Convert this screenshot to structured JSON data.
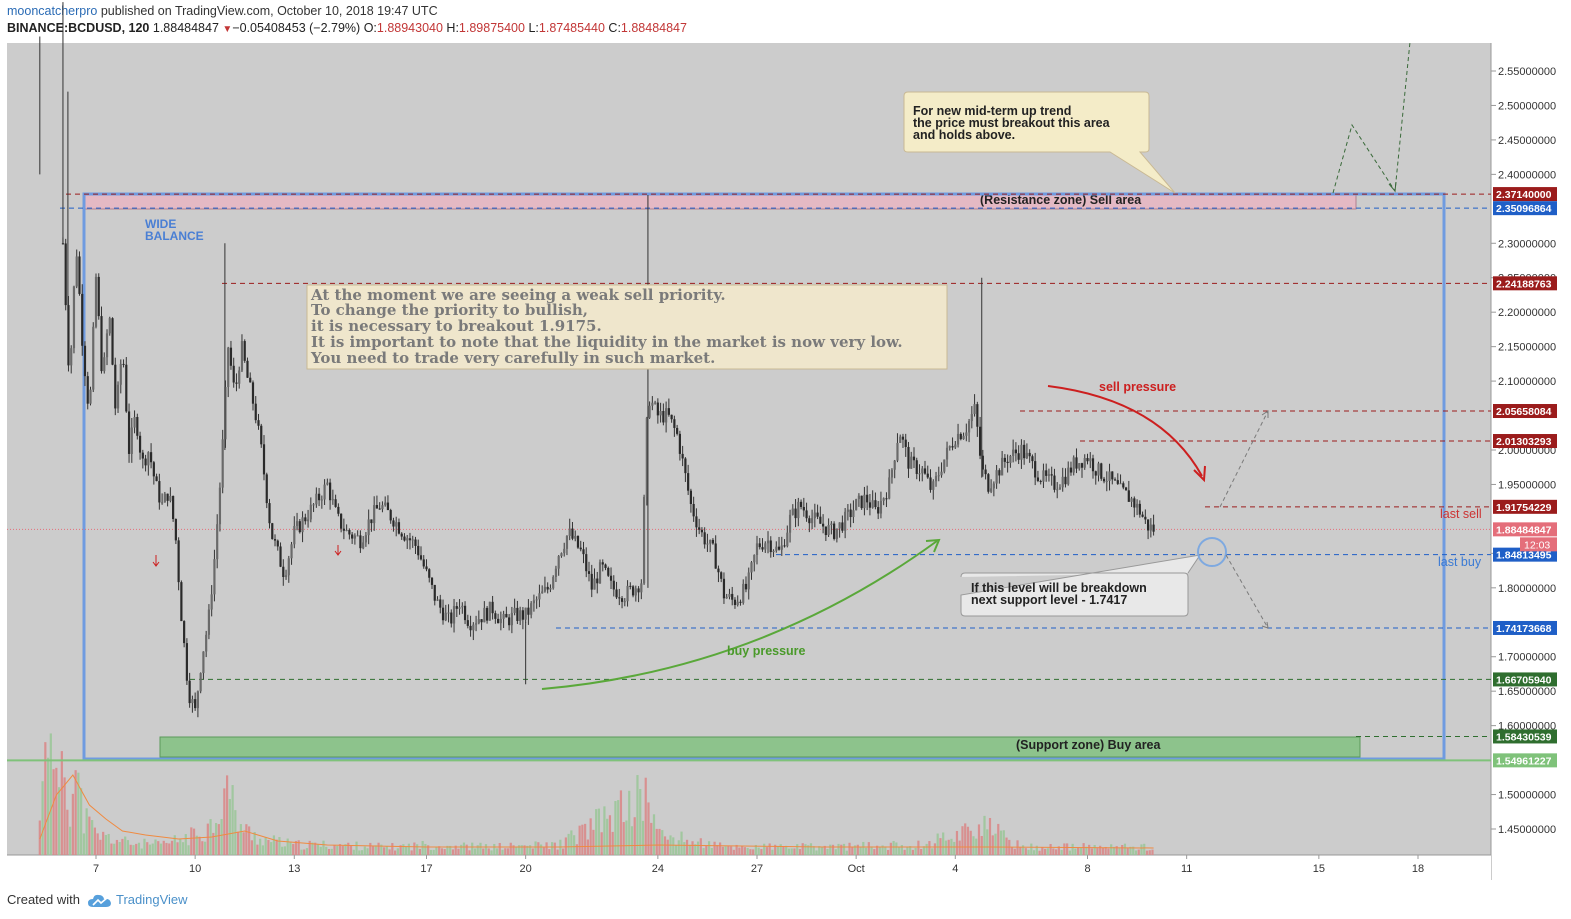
{
  "header": {
    "author": "mooncatcherpro",
    "published": "published on TradingView.com, October 10, 2018 19:47 UTC",
    "symbol": "BINANCE:BCDUSD, 120",
    "last": "1.88484847",
    "change": "−0.05408453 (−2.79%)",
    "o_label": "O:",
    "o": "1.88943040",
    "h_label": "H:",
    "h": "1.89875400",
    "l_label": "L:",
    "l": "1.87485440",
    "c_label": "C:",
    "c": "1.88484847"
  },
  "footer": {
    "created_with": "Created with",
    "brand": "TradingView"
  },
  "colors": {
    "background": "#cccccc",
    "candle_up": "#4a4a4a",
    "candle_down": "#3a3a3a",
    "resistance_zone": "#e4b9c4",
    "support_zone": "#8dc38c",
    "balance_box": "#6f9be0",
    "red_level": "#9b1c1c",
    "blue_level": "#1f5fc7",
    "green_level": "#2f6e2f"
  },
  "chart_data": {
    "type": "candlestick",
    "y_axis": {
      "ticks": [
        "2.55000000",
        "2.50000000",
        "2.45000000",
        "2.40000000",
        "2.30000000",
        "2.25000000",
        "2.20000000",
        "2.15000000",
        "2.10000000",
        "2.00000000",
        "1.95000000",
        "1.85000000",
        "1.80000000",
        "1.70000000",
        "1.65000000",
        "1.60000000",
        "1.50000000",
        "1.45000000"
      ],
      "tick_values": [
        2.55,
        2.5,
        2.45,
        2.4,
        2.3,
        2.25,
        2.2,
        2.15,
        2.1,
        2.0,
        1.95,
        1.85,
        1.8,
        1.7,
        1.65,
        1.6,
        1.5,
        1.45
      ],
      "range": [
        1.4,
        2.6
      ]
    },
    "x_axis": {
      "labels": [
        "7",
        "10",
        "13",
        "17",
        "20",
        "24",
        "27",
        "Oct",
        "4",
        "8",
        "11",
        "15",
        "18"
      ],
      "day_index": [
        3,
        6,
        9,
        13,
        16,
        20,
        23,
        26,
        29,
        33,
        36,
        40,
        43
      ]
    },
    "price_levels": [
      {
        "label": "2.37140000",
        "value": 2.3714,
        "color": "red"
      },
      {
        "label": "2.35096864",
        "value": 2.35096864,
        "color": "blue"
      },
      {
        "label": "2.24188763",
        "value": 2.24188763,
        "color": "red"
      },
      {
        "label": "2.05658084",
        "value": 2.05658084,
        "color": "red"
      },
      {
        "label": "2.01303293",
        "value": 2.01303293,
        "color": "red"
      },
      {
        "label": "1.91754229",
        "value": 1.91754229,
        "color": "red"
      },
      {
        "label": "1.88484847",
        "value": 1.88484847,
        "color": "pink"
      },
      {
        "label": "1.84813495",
        "value": 1.84813495,
        "color": "blue"
      },
      {
        "label": "1.74173668",
        "value": 1.74173668,
        "color": "blue"
      },
      {
        "label": "1.66705940",
        "value": 1.6670594,
        "color": "green"
      },
      {
        "label": "1.58430539",
        "value": 1.58430539,
        "color": "green"
      },
      {
        "label": "1.54961227",
        "value": 1.54961227,
        "color": "lightgreen"
      }
    ],
    "countdown": "12:03",
    "close_points": [
      [
        2.0,
        2.3
      ],
      [
        2.2,
        2.1
      ],
      [
        2.4,
        2.3
      ],
      [
        2.6,
        2.15
      ],
      [
        2.8,
        2.05
      ],
      [
        3.0,
        2.25
      ],
      [
        3.2,
        2.1
      ],
      [
        3.4,
        2.2
      ],
      [
        3.6,
        2.05
      ],
      [
        3.8,
        2.15
      ],
      [
        4.0,
        2.0
      ],
      [
        4.2,
        2.05
      ],
      [
        4.4,
        1.98
      ],
      [
        4.6,
        2.0
      ],
      [
        4.8,
        1.95
      ],
      [
        5.0,
        1.92
      ],
      [
        5.2,
        1.94
      ],
      [
        5.4,
        1.88
      ],
      [
        5.6,
        1.75
      ],
      [
        5.8,
        1.65
      ],
      [
        6.0,
        1.62
      ],
      [
        6.2,
        1.7
      ],
      [
        6.4,
        1.75
      ],
      [
        6.6,
        1.85
      ],
      [
        6.8,
        1.98
      ],
      [
        7.0,
        2.15
      ],
      [
        7.2,
        2.08
      ],
      [
        7.4,
        2.15
      ],
      [
        7.6,
        2.1
      ],
      [
        7.8,
        2.06
      ],
      [
        8.0,
        2.0
      ],
      [
        8.3,
        1.88
      ],
      [
        8.7,
        1.82
      ],
      [
        9.0,
        1.88
      ],
      [
        9.3,
        1.9
      ],
      [
        9.6,
        1.92
      ],
      [
        10.0,
        1.95
      ],
      [
        10.3,
        1.9
      ],
      [
        10.6,
        1.88
      ],
      [
        11.0,
        1.87
      ],
      [
        11.3,
        1.9
      ],
      [
        11.6,
        1.92
      ],
      [
        12.0,
        1.9
      ],
      [
        12.3,
        1.88
      ],
      [
        12.7,
        1.86
      ],
      [
        13.0,
        1.82
      ],
      [
        13.3,
        1.78
      ],
      [
        13.7,
        1.75
      ],
      [
        14.0,
        1.78
      ],
      [
        14.3,
        1.75
      ],
      [
        14.7,
        1.76
      ],
      [
        15.0,
        1.77
      ],
      [
        15.3,
        1.75
      ],
      [
        15.7,
        1.76
      ],
      [
        16.0,
        1.76
      ],
      [
        16.3,
        1.78
      ],
      [
        16.7,
        1.8
      ],
      [
        17.0,
        1.85
      ],
      [
        17.3,
        1.88
      ],
      [
        17.7,
        1.85
      ],
      [
        18.0,
        1.8
      ],
      [
        18.3,
        1.83
      ],
      [
        18.6,
        1.8
      ],
      [
        19.0,
        1.79
      ],
      [
        19.3,
        1.8
      ],
      [
        19.5,
        1.81
      ],
      [
        19.7,
        2.08
      ],
      [
        20.0,
        2.05
      ],
      [
        20.3,
        2.05
      ],
      [
        20.6,
        2.02
      ],
      [
        21.0,
        1.92
      ],
      [
        21.3,
        1.88
      ],
      [
        21.7,
        1.85
      ],
      [
        22.0,
        1.79
      ],
      [
        22.3,
        1.78
      ],
      [
        22.7,
        1.8
      ],
      [
        23.0,
        1.86
      ],
      [
        23.3,
        1.87
      ],
      [
        23.7,
        1.85
      ],
      [
        24.0,
        1.9
      ],
      [
        24.3,
        1.92
      ],
      [
        24.7,
        1.9
      ],
      [
        25.0,
        1.89
      ],
      [
        25.3,
        1.88
      ],
      [
        25.7,
        1.9
      ],
      [
        26.0,
        1.92
      ],
      [
        26.3,
        1.93
      ],
      [
        26.6,
        1.91
      ],
      [
        27.0,
        1.95
      ],
      [
        27.3,
        2.03
      ],
      [
        27.6,
        1.98
      ],
      [
        28.0,
        1.97
      ],
      [
        28.3,
        1.94
      ],
      [
        28.6,
        1.98
      ],
      [
        29.0,
        2.02
      ],
      [
        29.3,
        2.03
      ],
      [
        29.6,
        2.06
      ],
      [
        29.8,
        1.97
      ],
      [
        30.0,
        1.95
      ],
      [
        30.3,
        1.97
      ],
      [
        30.6,
        1.99
      ],
      [
        31.0,
        2.0
      ],
      [
        31.3,
        1.98
      ],
      [
        31.6,
        1.96
      ],
      [
        32.0,
        1.95
      ],
      [
        32.3,
        1.96
      ],
      [
        32.6,
        1.98
      ],
      [
        33.0,
        1.99
      ],
      [
        33.3,
        1.97
      ],
      [
        33.6,
        1.96
      ],
      [
        34.0,
        1.94
      ],
      [
        34.3,
        1.93
      ],
      [
        34.6,
        1.91
      ],
      [
        34.8,
        1.89
      ],
      [
        35.0,
        1.885
      ]
    ],
    "volume_points": [
      [
        1.3,
        0.15
      ],
      [
        1.5,
        0.9
      ],
      [
        1.6,
        0.5
      ],
      [
        1.8,
        0.3
      ],
      [
        2.0,
        0.6
      ],
      [
        2.2,
        0.25
      ],
      [
        2.4,
        0.4
      ],
      [
        2.6,
        0.2
      ],
      [
        2.8,
        0.15
      ],
      [
        3.0,
        0.1
      ],
      [
        3.5,
        0.08
      ],
      [
        4.0,
        0.06
      ],
      [
        5.0,
        0.05
      ],
      [
        6.0,
        0.1
      ],
      [
        6.5,
        0.15
      ],
      [
        7.0,
        0.35
      ],
      [
        7.2,
        0.2
      ],
      [
        7.5,
        0.12
      ],
      [
        8.0,
        0.08
      ],
      [
        9.0,
        0.05
      ],
      [
        10.0,
        0.05
      ],
      [
        12.0,
        0.04
      ],
      [
        13.0,
        0.05
      ],
      [
        15.0,
        0.04
      ],
      [
        17.0,
        0.05
      ],
      [
        19.7,
        0.3
      ],
      [
        20.0,
        0.1
      ],
      [
        22.0,
        0.04
      ],
      [
        25.0,
        0.04
      ],
      [
        28.0,
        0.05
      ],
      [
        29.8,
        0.15
      ],
      [
        31.0,
        0.04
      ],
      [
        33.0,
        0.04
      ],
      [
        35.0,
        0.04
      ]
    ],
    "volume_ma_points": [
      [
        1.3,
        0.08
      ],
      [
        1.8,
        0.3
      ],
      [
        2.3,
        0.4
      ],
      [
        2.8,
        0.25
      ],
      [
        3.3,
        0.18
      ],
      [
        3.8,
        0.12
      ],
      [
        4.5,
        0.1
      ],
      [
        5.5,
        0.08
      ],
      [
        6.5,
        0.09
      ],
      [
        7.5,
        0.12
      ],
      [
        8.5,
        0.07
      ],
      [
        10.0,
        0.05
      ],
      [
        13.0,
        0.04
      ],
      [
        17.0,
        0.04
      ],
      [
        20.0,
        0.05
      ],
      [
        25.0,
        0.04
      ],
      [
        30.0,
        0.04
      ],
      [
        35.0,
        0.035
      ]
    ],
    "annotations": {
      "wide_balance": [
        "WIDE",
        "BALANCE"
      ],
      "resistance_zone": "(Resistance zone) Sell area",
      "support_zone": "(Support zone) Buy area",
      "main_note": [
        "At the moment we are seeing a weak sell priority.",
        "To change the priority to bullish,",
        "it is necessary to breakout 1.9175.",
        "It is important to note that the liquidity in the market is now very low.",
        "You need to trade very carefully in such market."
      ],
      "uptrend_note": [
        "For new mid-term up trend",
        "the price must breakout this area",
        "and holds above."
      ],
      "support_note": [
        "If this level will be breakdown",
        "next support level - 1.7417"
      ],
      "sell_pressure": "sell pressure",
      "buy_pressure": "buy pressure",
      "last_sell": "last sell",
      "last_buy": "last buy"
    }
  }
}
